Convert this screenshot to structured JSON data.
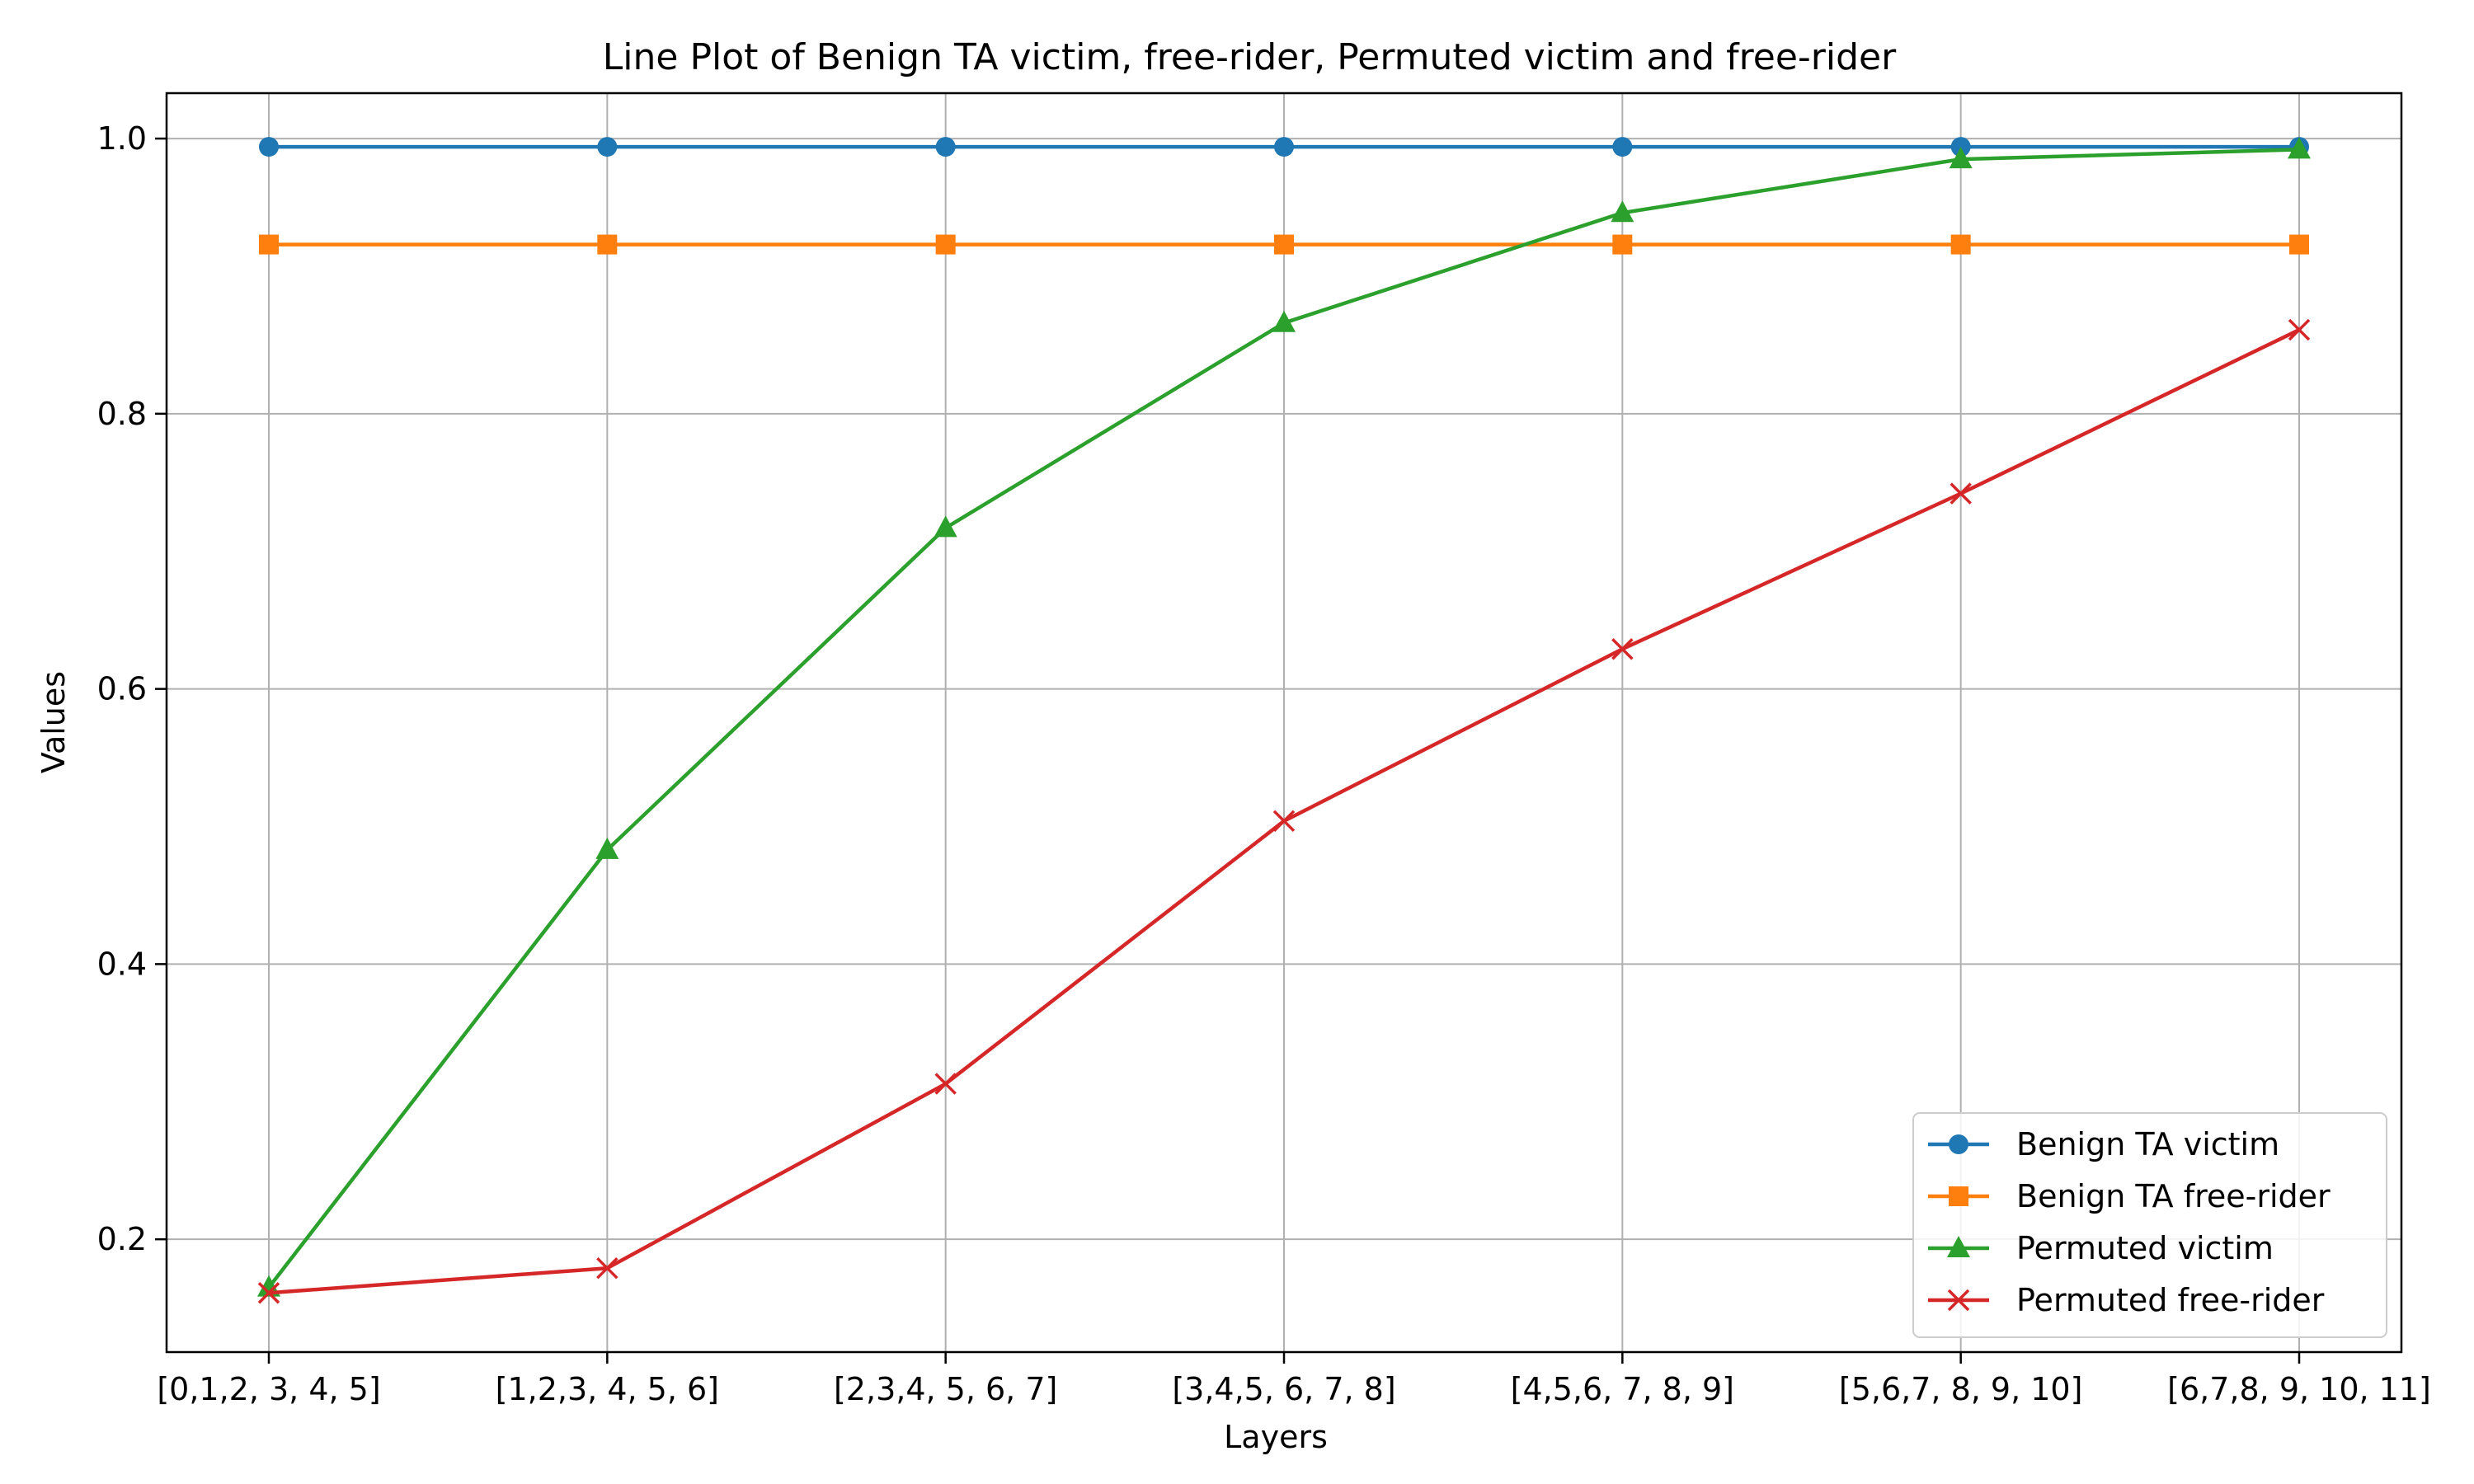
{
  "chart_data": {
    "type": "line",
    "title": "Line Plot of Benign TA victim, free-rider, Permuted victim and free-rider",
    "xlabel": "Layers",
    "ylabel": "Values",
    "categories": [
      "[0,1,2, 3, 4, 5]",
      "[1,2,3, 4, 5, 6]",
      "[2,3,4, 5, 6, 7]",
      "[3,4,5, 6, 7, 8]",
      "[4,5,6, 7, 8, 9]",
      "[5,6,7, 8, 9, 10]",
      "[6,7,8, 9, 10, 11]"
    ],
    "ylim": [
      0.118,
      1.033
    ],
    "yticks": [
      "0.2",
      "0.4",
      "0.6",
      "0.8",
      "1.0"
    ],
    "grid": true,
    "legend_position": "bottom-right",
    "series": [
      {
        "name": "Benign TA victim",
        "color": "#1f77b4",
        "marker": "circle",
        "values": [
          0.994,
          0.994,
          0.994,
          0.994,
          0.994,
          0.994,
          0.994
        ]
      },
      {
        "name": "Benign TA free-rider",
        "color": "#ff7f0e",
        "marker": "square",
        "values": [
          0.923,
          0.923,
          0.923,
          0.923,
          0.923,
          0.923,
          0.923
        ]
      },
      {
        "name": "Permuted victim",
        "color": "#2ca02c",
        "marker": "triangle",
        "values": [
          0.165,
          0.483,
          0.717,
          0.866,
          0.946,
          0.985,
          0.992
        ]
      },
      {
        "name": "Permuted free-rider",
        "color": "#d62728",
        "marker": "x",
        "values": [
          0.161,
          0.179,
          0.313,
          0.504,
          0.629,
          0.742,
          0.861
        ]
      }
    ]
  }
}
